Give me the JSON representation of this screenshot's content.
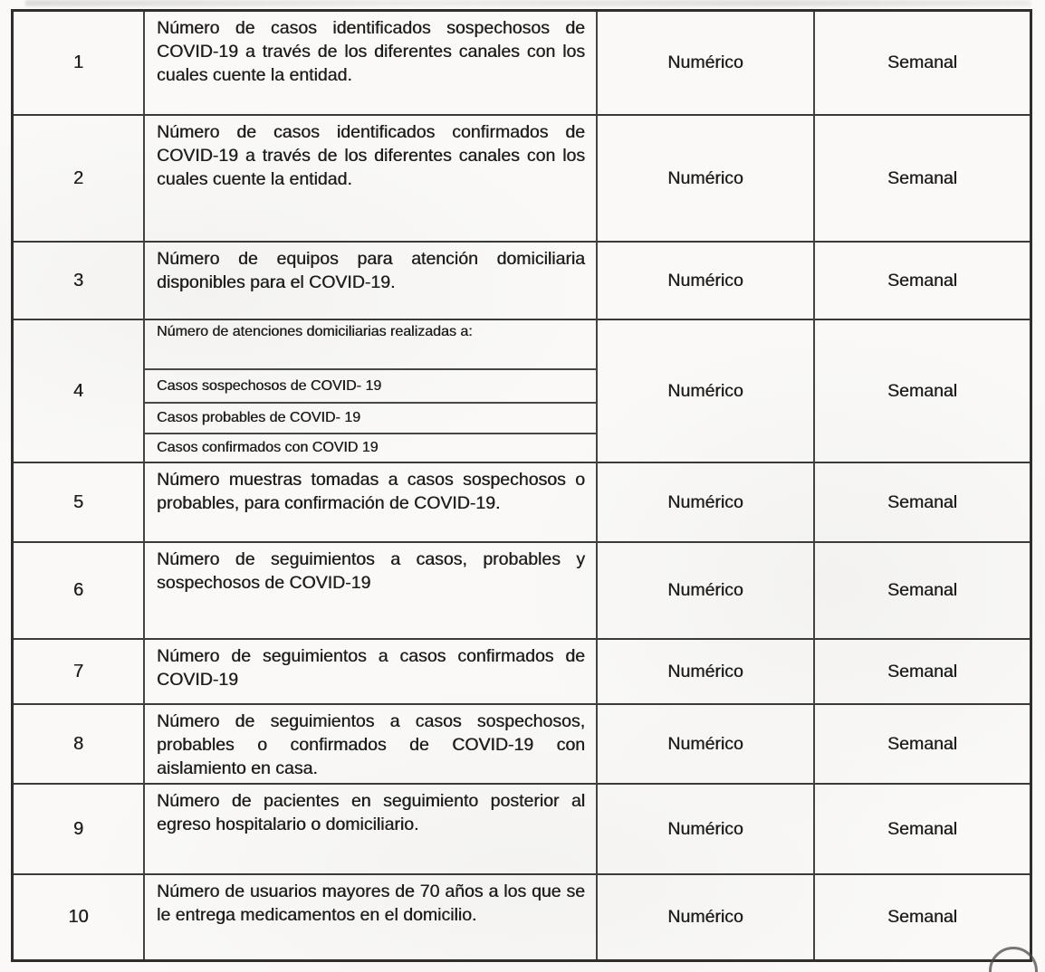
{
  "table": {
    "type_header_implied": "",
    "rows": [
      {
        "num": "1",
        "desc": "Número de casos identificados sospechosos de COVID-19 a través de los diferentes canales con los cuales cuente la entidad.",
        "type": "Numérico",
        "frequency": "Semanal"
      },
      {
        "num": "2",
        "desc": "Número de casos identificados confirmados de COVID-19 a través de los diferentes canales con los cuales cuente la entidad.",
        "type": "Numérico",
        "frequency": "Semanal"
      },
      {
        "num": "3",
        "desc": "Número de equipos para atención domiciliaria disponibles para el COVID-19.",
        "type": "Numérico",
        "frequency": "Semanal"
      },
      {
        "num": "4",
        "desc_header": "Número de atenciones domiciliarias realizadas a:",
        "sub_rows": [
          "Casos sospechosos de COVID- 19",
          "Casos probables de COVID- 19",
          "Casos confirmados con COVID 19"
        ],
        "type": "Numérico",
        "frequency": "Semanal"
      },
      {
        "num": "5",
        "desc": "Número muestras tomadas a casos sospechosos o probables, para confirmación de COVID-19.",
        "type": "Numérico",
        "frequency": "Semanal"
      },
      {
        "num": "6",
        "desc": "Número de seguimientos a casos, probables y sospechosos de COVID-19",
        "type": "Numérico",
        "frequency": "Semanal"
      },
      {
        "num": "7",
        "desc": "Número de seguimientos a casos confirmados de COVID-19",
        "type": "Numérico",
        "frequency": "Semanal"
      },
      {
        "num": "8",
        "desc": "Número de seguimientos a casos sospechosos, probables o confirmados de COVID-19 con aislamiento en casa.",
        "type": "Numérico",
        "frequency": "Semanal"
      },
      {
        "num": "9",
        "desc": "Número de pacientes en seguimiento posterior al egreso hospitalario o domiciliario.",
        "type": "Numérico",
        "frequency": "Semanal"
      },
      {
        "num": "10",
        "desc": "Número de usuarios mayores de 70 años a los que se le entrega medicamentos en el domicilio.",
        "type": "Numérico",
        "frequency": "Semanal"
      }
    ]
  },
  "icons": {
    "corner_stamp": "partial-circle-stamp"
  }
}
